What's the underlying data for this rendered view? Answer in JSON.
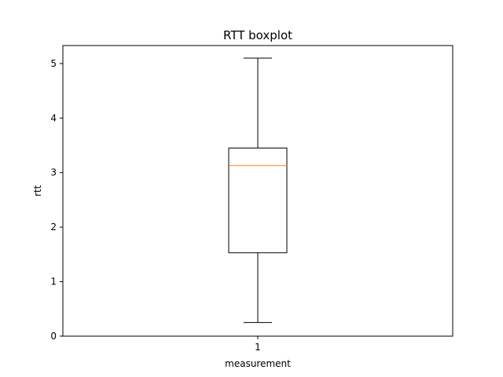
{
  "chart_data": {
    "type": "boxplot",
    "title": "RTT boxplot",
    "xlabel": "measurement",
    "ylabel": "rtt",
    "ylim": [
      0,
      5.33
    ],
    "y_ticks": [
      0,
      1,
      2,
      3,
      4,
      5
    ],
    "categories": [
      "1"
    ],
    "boxes": [
      {
        "category": "1",
        "whisker_low": 0.25,
        "q1": 1.53,
        "median": 3.13,
        "q3": 3.45,
        "whisker_high": 5.1
      }
    ],
    "colors": {
      "box": "#000000",
      "median": "#ff7f0e",
      "axes": "#000000"
    },
    "grid": false
  }
}
